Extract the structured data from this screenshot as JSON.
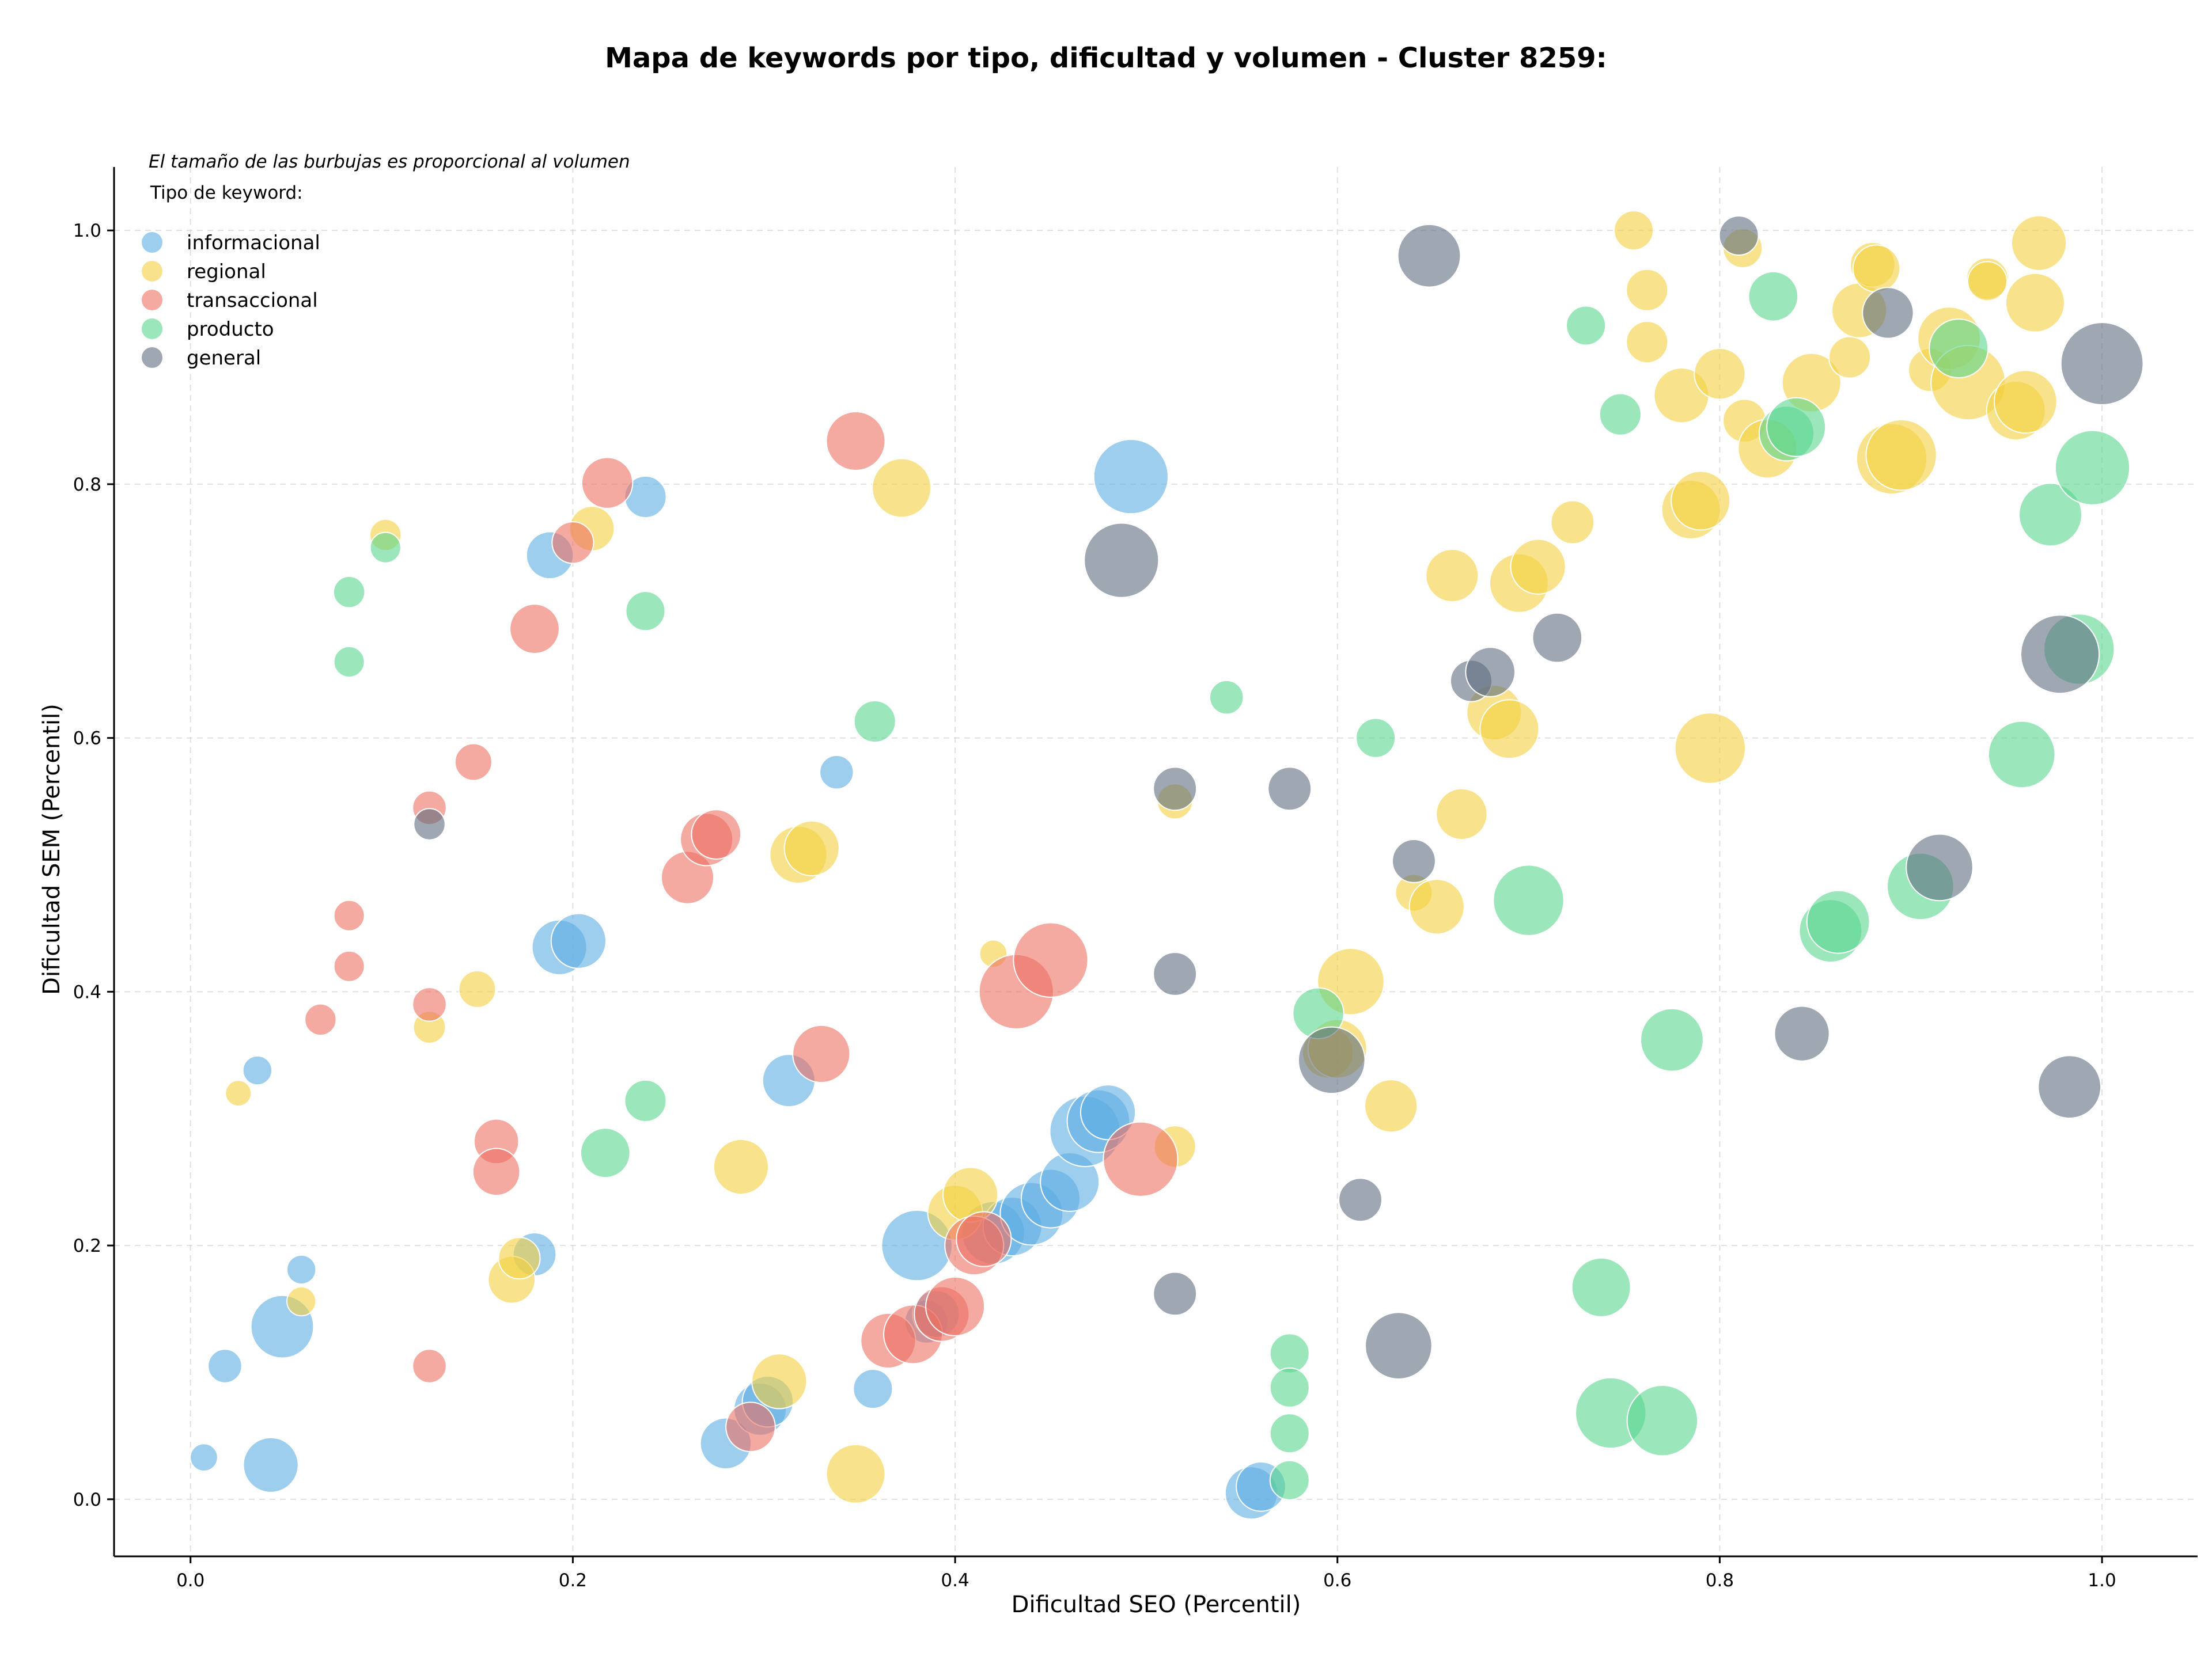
{
  "chart_data": {
    "type": "scatter",
    "title": "Mapa de keywords por tipo, dificultad y volumen - Cluster 8259:",
    "xlabel": "Dificultad SEO (Percentil)",
    "ylabel": "Dificultad SEM (Percentil)",
    "note": "El tamaño de las burbujas es proporcional al volumen",
    "legend_title": "Tipo de keyword:",
    "legend_position": "top-left",
    "xlim": [
      -0.04,
      1.05
    ],
    "ylim": [
      -0.045,
      1.05
    ],
    "xticks": [
      "0.0",
      "0.2",
      "0.4",
      "0.6",
      "0.8",
      "1.0"
    ],
    "xtick_values": [
      0.0,
      0.2,
      0.4,
      0.6,
      0.8,
      1.0
    ],
    "yticks": [
      "0.0",
      "0.2",
      "0.4",
      "0.6",
      "0.8",
      "1.0"
    ],
    "ytick_values": [
      0.0,
      0.2,
      0.4,
      0.6,
      0.8,
      1.0
    ],
    "grid": true,
    "series": [
      {
        "name": "informacional",
        "color": "#5DADE2",
        "points": [
          [
            0.007,
            0.033,
            0.1
          ],
          [
            0.018,
            0.105,
            0.18
          ],
          [
            0.035,
            0.338,
            0.12
          ],
          [
            0.042,
            0.027,
            0.45
          ],
          [
            0.048,
            0.136,
            0.55
          ],
          [
            0.058,
            0.181,
            0.12
          ],
          [
            0.188,
            0.744,
            0.35
          ],
          [
            0.18,
            0.193,
            0.3
          ],
          [
            0.193,
            0.435,
            0.45
          ],
          [
            0.203,
            0.44,
            0.45
          ],
          [
            0.238,
            0.79,
            0.28
          ],
          [
            0.28,
            0.044,
            0.4
          ],
          [
            0.298,
            0.071,
            0.42
          ],
          [
            0.302,
            0.077,
            0.4
          ],
          [
            0.313,
            0.33,
            0.42
          ],
          [
            0.338,
            0.573,
            0.18
          ],
          [
            0.357,
            0.087,
            0.25
          ],
          [
            0.38,
            0.2,
            0.65
          ],
          [
            0.385,
            0.14,
            0.3
          ],
          [
            0.39,
            0.146,
            0.35
          ],
          [
            0.42,
            0.21,
            0.55
          ],
          [
            0.43,
            0.215,
            0.5
          ],
          [
            0.44,
            0.225,
            0.55
          ],
          [
            0.45,
            0.237,
            0.5
          ],
          [
            0.46,
            0.25,
            0.5
          ],
          [
            0.468,
            0.29,
            0.65
          ],
          [
            0.475,
            0.298,
            0.55
          ],
          [
            0.48,
            0.305,
            0.45
          ],
          [
            0.492,
            0.806,
            0.7
          ],
          [
            0.555,
            0.005,
            0.42
          ],
          [
            0.56,
            0.01,
            0.38
          ]
        ]
      },
      {
        "name": "regional",
        "color": "#F4D03F",
        "points": [
          [
            0.025,
            0.32,
            0.08
          ],
          [
            0.058,
            0.156,
            0.12
          ],
          [
            0.102,
            0.76,
            0.15
          ],
          [
            0.125,
            0.372,
            0.16
          ],
          [
            0.15,
            0.402,
            0.22
          ],
          [
            0.168,
            0.173,
            0.35
          ],
          [
            0.172,
            0.19,
            0.28
          ],
          [
            0.21,
            0.765,
            0.32
          ],
          [
            0.288,
            0.262,
            0.45
          ],
          [
            0.308,
            0.093,
            0.45
          ],
          [
            0.318,
            0.508,
            0.48
          ],
          [
            0.325,
            0.513,
            0.45
          ],
          [
            0.348,
            0.02,
            0.5
          ],
          [
            0.372,
            0.797,
            0.5
          ],
          [
            0.4,
            0.226,
            0.45
          ],
          [
            0.408,
            0.24,
            0.45
          ],
          [
            0.42,
            0.43,
            0.1
          ],
          [
            0.515,
            0.55,
            0.2
          ],
          [
            0.515,
            0.278,
            0.28
          ],
          [
            0.595,
            0.352,
            0.4
          ],
          [
            0.6,
            0.355,
            0.5
          ],
          [
            0.607,
            0.408,
            0.6
          ],
          [
            0.628,
            0.31,
            0.42
          ],
          [
            0.64,
            0.478,
            0.22
          ],
          [
            0.652,
            0.467,
            0.45
          ],
          [
            0.66,
            0.728,
            0.42
          ],
          [
            0.665,
            0.54,
            0.4
          ],
          [
            0.682,
            0.62,
            0.45
          ],
          [
            0.69,
            0.607,
            0.5
          ],
          [
            0.695,
            0.722,
            0.5
          ],
          [
            0.705,
            0.735,
            0.45
          ],
          [
            0.723,
            0.77,
            0.3
          ],
          [
            0.755,
            1.0,
            0.25
          ],
          [
            0.762,
            0.953,
            0.28
          ],
          [
            0.762,
            0.912,
            0.28
          ],
          [
            0.78,
            0.87,
            0.45
          ],
          [
            0.785,
            0.78,
            0.5
          ],
          [
            0.79,
            0.787,
            0.5
          ],
          [
            0.795,
            0.592,
            0.65
          ],
          [
            0.8,
            0.887,
            0.4
          ],
          [
            0.812,
            0.986,
            0.25
          ],
          [
            0.813,
            0.85,
            0.3
          ],
          [
            0.825,
            0.828,
            0.5
          ],
          [
            0.848,
            0.88,
            0.5
          ],
          [
            0.868,
            0.9,
            0.28
          ],
          [
            0.873,
            0.937,
            0.45
          ],
          [
            0.88,
            0.973,
            0.32
          ],
          [
            0.882,
            0.97,
            0.35
          ],
          [
            0.89,
            0.82,
            0.65
          ],
          [
            0.895,
            0.823,
            0.65
          ],
          [
            0.91,
            0.89,
            0.3
          ],
          [
            0.92,
            0.915,
            0.55
          ],
          [
            0.93,
            0.88,
            0.7
          ],
          [
            0.94,
            0.962,
            0.28
          ],
          [
            0.94,
            0.96,
            0.25
          ],
          [
            0.955,
            0.858,
            0.5
          ],
          [
            0.96,
            0.865,
            0.55
          ],
          [
            0.965,
            0.943,
            0.5
          ],
          [
            0.967,
            0.99,
            0.45
          ]
        ]
      },
      {
        "name": "transaccional",
        "color": "#EC7063",
        "points": [
          [
            0.068,
            0.378,
            0.15
          ],
          [
            0.083,
            0.42,
            0.14
          ],
          [
            0.083,
            0.46,
            0.14
          ],
          [
            0.125,
            0.545,
            0.18
          ],
          [
            0.125,
            0.39,
            0.18
          ],
          [
            0.125,
            0.105,
            0.18
          ],
          [
            0.148,
            0.581,
            0.22
          ],
          [
            0.16,
            0.282,
            0.32
          ],
          [
            0.16,
            0.258,
            0.35
          ],
          [
            0.18,
            0.686,
            0.38
          ],
          [
            0.2,
            0.754,
            0.28
          ],
          [
            0.218,
            0.801,
            0.4
          ],
          [
            0.26,
            0.49,
            0.42
          ],
          [
            0.27,
            0.52,
            0.42
          ],
          [
            0.275,
            0.524,
            0.38
          ],
          [
            0.293,
            0.057,
            0.38
          ],
          [
            0.33,
            0.351,
            0.48
          ],
          [
            0.348,
            0.834,
            0.5
          ],
          [
            0.365,
            0.125,
            0.45
          ],
          [
            0.378,
            0.13,
            0.5
          ],
          [
            0.393,
            0.146,
            0.45
          ],
          [
            0.4,
            0.152,
            0.5
          ],
          [
            0.41,
            0.2,
            0.5
          ],
          [
            0.415,
            0.205,
            0.45
          ],
          [
            0.432,
            0.4,
            0.7
          ],
          [
            0.45,
            0.425,
            0.7
          ],
          [
            0.497,
            0.268,
            0.7
          ]
        ]
      },
      {
        "name": "producto",
        "color": "#58D68D",
        "points": [
          [
            0.083,
            0.715,
            0.15
          ],
          [
            0.083,
            0.66,
            0.14
          ],
          [
            0.102,
            0.75,
            0.14
          ],
          [
            0.217,
            0.273,
            0.38
          ],
          [
            0.238,
            0.7,
            0.25
          ],
          [
            0.238,
            0.314,
            0.28
          ],
          [
            0.358,
            0.613,
            0.28
          ],
          [
            0.542,
            0.632,
            0.18
          ],
          [
            0.575,
            0.115,
            0.25
          ],
          [
            0.575,
            0.088,
            0.25
          ],
          [
            0.575,
            0.052,
            0.25
          ],
          [
            0.575,
            0.015,
            0.25
          ],
          [
            0.59,
            0.383,
            0.4
          ],
          [
            0.62,
            0.6,
            0.25
          ],
          [
            0.7,
            0.472,
            0.65
          ],
          [
            0.73,
            0.925,
            0.25
          ],
          [
            0.738,
            0.167,
            0.5
          ],
          [
            0.743,
            0.068,
            0.65
          ],
          [
            0.748,
            0.855,
            0.28
          ],
          [
            0.77,
            0.062,
            0.65
          ],
          [
            0.775,
            0.362,
            0.55
          ],
          [
            0.828,
            0.948,
            0.38
          ],
          [
            0.835,
            0.84,
            0.45
          ],
          [
            0.84,
            0.845,
            0.5
          ],
          [
            0.858,
            0.448,
            0.55
          ],
          [
            0.862,
            0.455,
            0.55
          ],
          [
            0.905,
            0.483,
            0.6
          ],
          [
            0.925,
            0.907,
            0.5
          ],
          [
            0.958,
            0.587,
            0.6
          ],
          [
            0.973,
            0.776,
            0.55
          ],
          [
            0.988,
            0.67,
            0.65
          ],
          [
            0.995,
            0.813,
            0.7
          ]
        ]
      },
      {
        "name": "general",
        "color": "#5D6D7E",
        "points": [
          [
            0.125,
            0.532,
            0.15
          ],
          [
            0.487,
            0.74,
            0.7
          ],
          [
            0.515,
            0.414,
            0.3
          ],
          [
            0.515,
            0.162,
            0.3
          ],
          [
            0.515,
            0.56,
            0.3
          ],
          [
            0.575,
            0.56,
            0.3
          ],
          [
            0.597,
            0.346,
            0.6
          ],
          [
            0.612,
            0.236,
            0.3
          ],
          [
            0.632,
            0.121,
            0.6
          ],
          [
            0.64,
            0.503,
            0.3
          ],
          [
            0.648,
            0.98,
            0.55
          ],
          [
            0.67,
            0.645,
            0.28
          ],
          [
            0.68,
            0.652,
            0.38
          ],
          [
            0.715,
            0.679,
            0.38
          ],
          [
            0.81,
            0.996,
            0.25
          ],
          [
            0.843,
            0.367,
            0.45
          ],
          [
            0.888,
            0.935,
            0.4
          ],
          [
            0.915,
            0.498,
            0.6
          ],
          [
            0.978,
            0.666,
            0.75
          ],
          [
            0.983,
            0.325,
            0.55
          ],
          [
            1.0,
            0.895,
            0.8
          ]
        ]
      }
    ]
  }
}
